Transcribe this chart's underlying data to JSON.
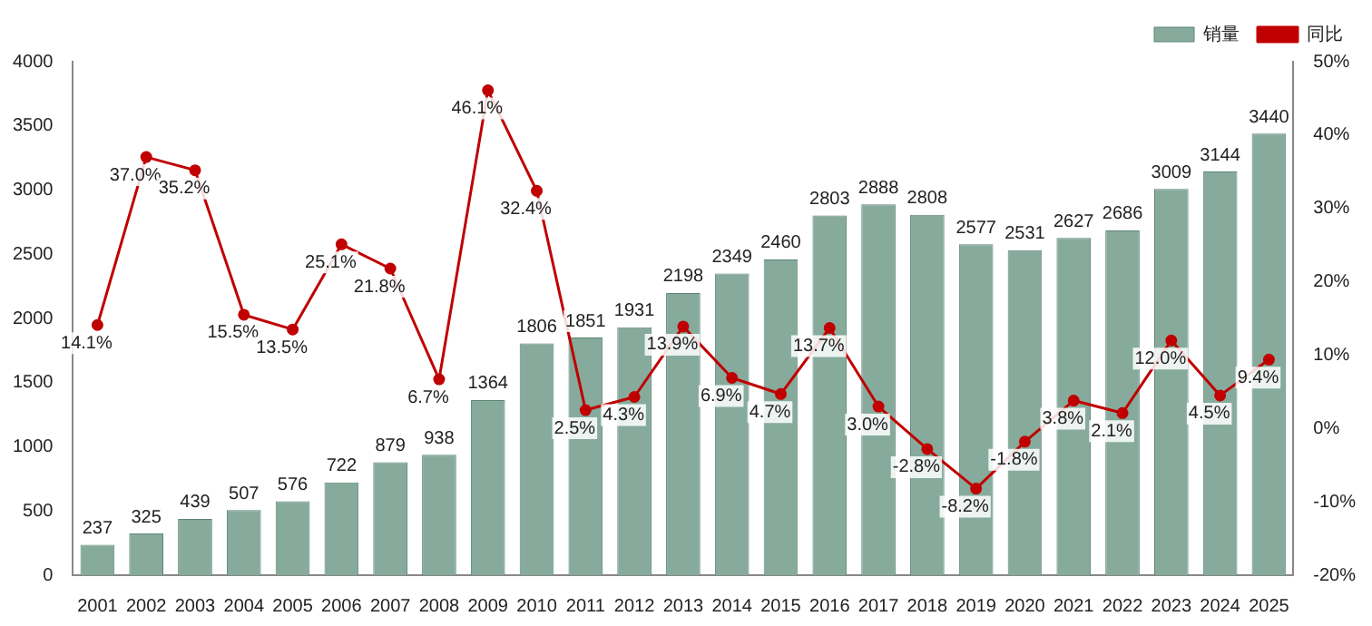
{
  "chart_data": {
    "type": "bar",
    "categories": [
      "2001",
      "2002",
      "2003",
      "2004",
      "2005",
      "2006",
      "2007",
      "2008",
      "2009",
      "2010",
      "2011",
      "2012",
      "2013",
      "2014",
      "2015",
      "2016",
      "2017",
      "2018",
      "2019",
      "2020",
      "2021",
      "2022",
      "2023",
      "2024",
      "2025"
    ],
    "series": [
      {
        "name": "销量",
        "color": "#86ab9c",
        "values": [
          237,
          325,
          439,
          507,
          576,
          722,
          879,
          938,
          1364,
          1806,
          1851,
          1931,
          2198,
          2349,
          2460,
          2803,
          2888,
          2808,
          2577,
          2531,
          2627,
          2686,
          3009,
          3144,
          3440
        ],
        "value_labels": [
          "237",
          "325",
          "439",
          "507",
          "576",
          "722",
          "879",
          "938",
          "1364",
          "1806",
          "1851",
          "1931",
          "2198",
          "2349",
          "2460",
          "2803",
          "2888",
          "2808",
          "2577",
          "2531",
          "2627",
          "2686",
          "3009",
          "3144",
          "3440"
        ]
      },
      {
        "name": "同比",
        "type": "line",
        "axis": "y2",
        "color": "#c00000",
        "marker": "circle",
        "values": [
          14.1,
          37.0,
          35.2,
          15.5,
          13.5,
          25.1,
          21.8,
          6.7,
          46.1,
          32.4,
          2.5,
          4.3,
          13.9,
          6.9,
          4.7,
          13.7,
          3.0,
          -2.8,
          -8.2,
          -1.8,
          3.8,
          2.1,
          12.0,
          4.5,
          9.4
        ],
        "value_labels": [
          "14.1%",
          "37.0%",
          "35.2%",
          "15.5%",
          "13.5%",
          "25.1%",
          "21.8%",
          "6.7%",
          "46.1%",
          "32.4%",
          "2.5%",
          "4.3%",
          "13.9%",
          "6.9%",
          "4.7%",
          "13.7%",
          "3.0%",
          "-2.8%",
          "-8.2%",
          "-1.8%",
          "3.8%",
          "2.1%",
          "12.0%",
          "4.5%",
          "9.4%"
        ]
      }
    ],
    "ylim": [
      0,
      4000
    ],
    "yticks": [
      0,
      500,
      1000,
      1500,
      2000,
      2500,
      3000,
      3500,
      4000
    ],
    "y2lim": [
      -20,
      50
    ],
    "y2ticks": [
      {
        "value": -20,
        "label": "-20%"
      },
      {
        "value": -10,
        "label": "-10%"
      },
      {
        "value": 0,
        "label": "0%"
      },
      {
        "value": 10,
        "label": "10%"
      },
      {
        "value": 20,
        "label": "20%"
      },
      {
        "value": 30,
        "label": "30%"
      },
      {
        "value": 40,
        "label": "40%"
      },
      {
        "value": 50,
        "label": "50%"
      }
    ],
    "legend": "top right",
    "grid": false
  }
}
